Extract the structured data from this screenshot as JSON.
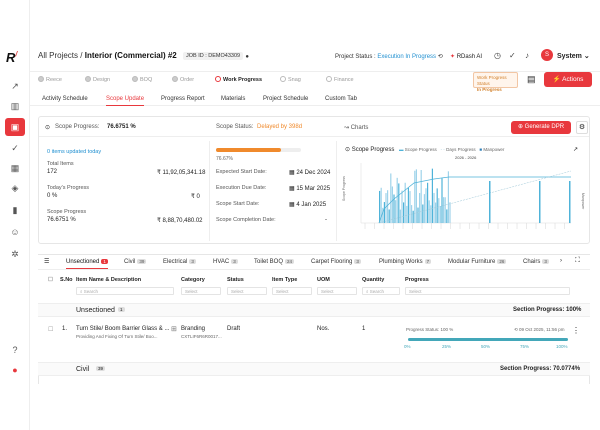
{
  "header": {
    "crumb_root": "All Projects",
    "crumb_sep": "/",
    "project_name": "Interior (Commercial) #2",
    "job_id": "JOB ID : DEMO43309",
    "status_label": "Project Status :",
    "status_value": "Execution In Progress",
    "rdash_label": "RDash AI",
    "user_initial": "S",
    "user_name": "System"
  },
  "steps": [
    {
      "label": "Reece"
    },
    {
      "label": "Design"
    },
    {
      "label": "BOQ"
    },
    {
      "label": "Order"
    },
    {
      "label": "Work Progress"
    },
    {
      "label": "Snag"
    },
    {
      "label": "Finance"
    }
  ],
  "work_progress_status": {
    "label": "Work Progress Status",
    "value": "In Progress"
  },
  "actions_label": "Actions",
  "tabs": [
    "Activity Schedule",
    "Scope Update",
    "Progress Report",
    "Materials",
    "Project Schedule",
    "Custom Tab"
  ],
  "summary": {
    "scope_progress_label": "Scope Progress:",
    "scope_progress_value": "76.6751 %",
    "scope_status_label": "Scope Status:",
    "scope_status_value": "Delayed by 398d",
    "charts_label": "Charts",
    "generate_dpr": "Generate DPR",
    "items_updated": "0 items updated today",
    "total_items_label": "Total Items",
    "total_items_value": "172",
    "total_amount": "₹ 11,92,05,341.18",
    "todays_progress_label": "Today's Progress",
    "todays_progress_value": "0 %",
    "todays_amount": "₹ 0",
    "scope_progress2_label": "Scope Progress",
    "scope_progress2_value": "76.6751 %",
    "scope_amount": "₹ 8,88,70,480.02",
    "bar_percent": "76.67%",
    "bar_fraction": 0.7667,
    "expected_start_label": "Expected Start Date:",
    "expected_start_value": "24 Dec 2024",
    "execution_due_label": "Execution Due Date:",
    "execution_due_value": "15 Mar 2025",
    "scope_start_label": "Scope Start Date:",
    "scope_start_value": "4 Jan 2025",
    "scope_completion_label": "Scope Completion Date:",
    "scope_completion_value": "-"
  },
  "chart_data": {
    "type": "area",
    "title": "Scope Progress",
    "legend": [
      "Scope Progress",
      "Days Progress",
      "Manpower"
    ],
    "range_label": "2026 - 2026",
    "ylabel": "Scope Progress",
    "y2label": "Manpower"
  },
  "categories": [
    {
      "label": "Unsectioned",
      "count": "1"
    },
    {
      "label": "Civil",
      "count": "39"
    },
    {
      "label": "Electrical",
      "count": "3"
    },
    {
      "label": "HVAC",
      "count": "3"
    },
    {
      "label": "Toilet BOQ",
      "count": "24"
    },
    {
      "label": "Carpet Flooring",
      "count": "3"
    },
    {
      "label": "Plumbing Works",
      "count": "7"
    },
    {
      "label": "Modular Furniture",
      "count": "26"
    },
    {
      "label": "Chairs",
      "count": "3"
    }
  ],
  "columns": {
    "sno": "S.No",
    "item": "Item Name & Description",
    "category": "Category",
    "status": "Status",
    "type": "Item Type",
    "uom": "UOM",
    "quantity": "Quantity",
    "progress": "Progress",
    "search": "Search",
    "select": "Select"
  },
  "sections": {
    "unsectioned": "Unsectioned",
    "unsectioned_count": "1",
    "unsectioned_progress": "Section Progress: 100%",
    "civil": "Civil",
    "civil_count": "39",
    "civil_progress": "Section Progress: 70.0774%"
  },
  "row": {
    "sno": "1.",
    "name": "Turn Stile/ Boom Barrier Glass & ...",
    "desc": "Providing And Fixing Of Turn Stile/ Boo...",
    "category": "Branding",
    "category_code": "CXTLIF6R6R0017...",
    "status": "Draft",
    "uom": "Nos.",
    "quantity": "1",
    "progress_status": "Progress Status: 100 %",
    "progress_date": "09 Oct 2025, 11:56 pm",
    "progress_fraction": 1.0,
    "ticks": [
      "0%",
      "25%",
      "50%",
      "75%",
      "100%"
    ]
  }
}
